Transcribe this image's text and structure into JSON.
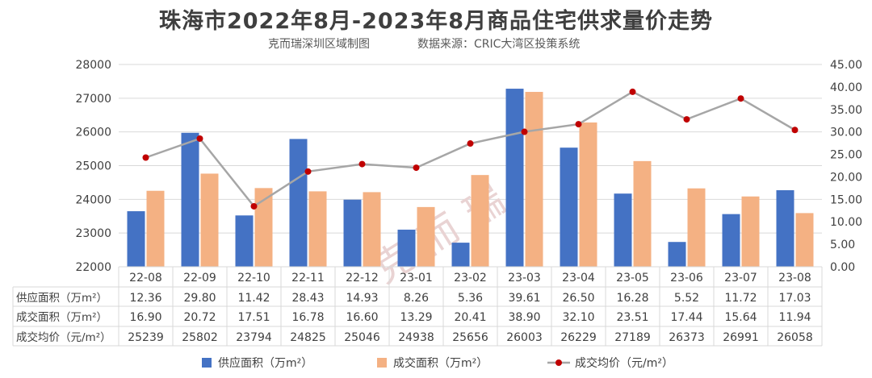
{
  "title": "珠海市2022年8月-2023年8月商品住宅供求量价走势",
  "subtitle_left": "克而瑞深圳区域制图",
  "subtitle_right": "数据来源：CRIC大湾区投策系统",
  "watermark": "克而瑞",
  "colors": {
    "supply": "#4472c4",
    "transaction": "#f4b183",
    "price_line": "#a6a6a6",
    "price_marker": "#c00000"
  },
  "chart_data": {
    "type": "bar",
    "categories": [
      "22-08",
      "22-09",
      "22-10",
      "22-11",
      "22-12",
      "23-01",
      "23-02",
      "23-03",
      "23-04",
      "23-05",
      "23-06",
      "23-07",
      "23-08"
    ],
    "series": [
      {
        "name": "供应面积（万m²）",
        "type": "bar",
        "axis": "right",
        "values": [
          12.36,
          29.8,
          11.42,
          28.43,
          14.93,
          8.26,
          5.36,
          39.61,
          26.5,
          16.28,
          5.52,
          11.72,
          17.03
        ]
      },
      {
        "name": "成交面积（万m²）",
        "type": "bar",
        "axis": "right",
        "values": [
          16.9,
          20.72,
          17.51,
          16.78,
          16.6,
          13.29,
          20.41,
          38.9,
          32.1,
          23.51,
          17.44,
          15.64,
          11.94
        ]
      },
      {
        "name": "成交均价（元/m²）",
        "type": "line",
        "axis": "left",
        "values": [
          25239,
          25802,
          23794,
          24825,
          25046,
          24938,
          25656,
          26003,
          26229,
          27189,
          26373,
          26991,
          26058
        ]
      }
    ],
    "table": {
      "rows": [
        {
          "label": "供应面积（万m²）",
          "values": [
            "12.36",
            "29.80",
            "11.42",
            "28.43",
            "14.93",
            "8.26",
            "5.36",
            "39.61",
            "26.50",
            "16.28",
            "5.52",
            "11.72",
            "17.03"
          ]
        },
        {
          "label": "成交面积（万m²）",
          "values": [
            "16.90",
            "20.72",
            "17.51",
            "16.78",
            "16.60",
            "13.29",
            "20.41",
            "38.90",
            "32.10",
            "23.51",
            "17.44",
            "15.64",
            "11.94"
          ]
        },
        {
          "label": "成交均价（元/m²）",
          "values": [
            "25239",
            "25802",
            "23794",
            "24825",
            "25046",
            "24938",
            "25656",
            "26003",
            "26229",
            "27189",
            "26373",
            "26991",
            "26058"
          ]
        }
      ]
    },
    "y_left": {
      "min": 22000,
      "max": 28000,
      "step": 1000,
      "ticks": [
        "22000",
        "23000",
        "24000",
        "25000",
        "26000",
        "27000",
        "28000"
      ]
    },
    "y_right": {
      "min": 0,
      "max": 45,
      "step": 5,
      "ticks": [
        "0.00",
        "5.00",
        "10.00",
        "15.00",
        "20.00",
        "25.00",
        "30.00",
        "35.00",
        "40.00",
        "45.00"
      ]
    },
    "grid": true,
    "legend": "bottom"
  }
}
